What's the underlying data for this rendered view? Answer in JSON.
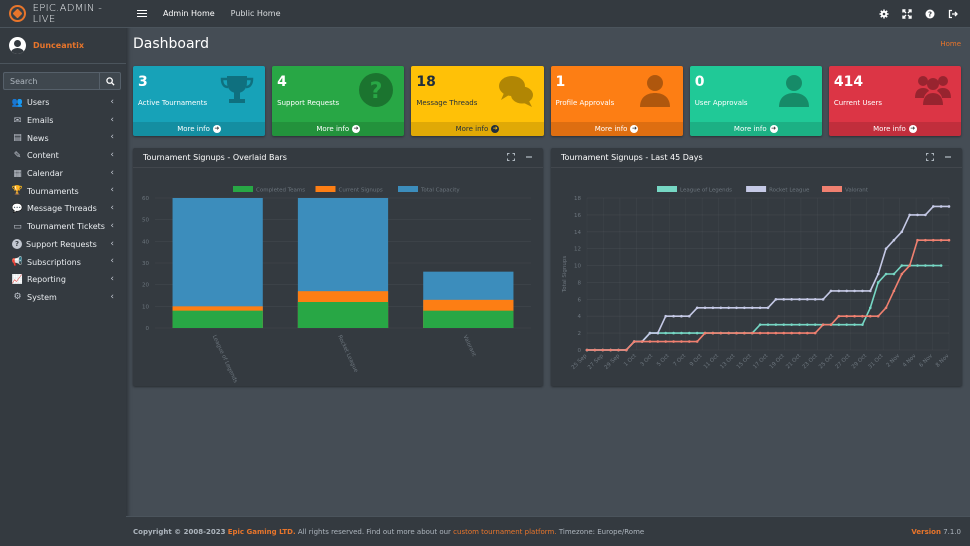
{
  "brand": {
    "name": "EPIC.ADMIN - LIVE"
  },
  "user": {
    "name": "Dunceantix"
  },
  "search": {
    "placeholder": "Search"
  },
  "sidebar": {
    "items": [
      {
        "label": "Users",
        "icon": "users-icon"
      },
      {
        "label": "Emails",
        "icon": "envelope-icon"
      },
      {
        "label": "News",
        "icon": "newspaper-icon"
      },
      {
        "label": "Content",
        "icon": "pencil-icon"
      },
      {
        "label": "Calendar",
        "icon": "calendar-icon"
      },
      {
        "label": "Tournaments",
        "icon": "trophy-icon"
      },
      {
        "label": "Message Threads",
        "icon": "comments-icon"
      },
      {
        "label": "Tournament Tickets",
        "icon": "ticket-icon"
      },
      {
        "label": "Support Requests",
        "icon": "question-icon"
      },
      {
        "label": "Subscriptions",
        "icon": "bullhorn-icon"
      },
      {
        "label": "Reporting",
        "icon": "chart-line-icon"
      },
      {
        "label": "System",
        "icon": "cog-icon"
      }
    ]
  },
  "topbar": {
    "links": [
      "Admin Home",
      "Public Home"
    ],
    "icons": [
      "settings-icon",
      "fullscreen-icon",
      "help-icon",
      "logout-icon"
    ]
  },
  "page": {
    "title": "Dashboard",
    "breadcrumb": "Home"
  },
  "info_boxes": [
    {
      "value": "3",
      "label": "Active Tournaments",
      "footer": "More info",
      "color": "#17a2b8",
      "icon": "trophy-icon"
    },
    {
      "value": "4",
      "label": "Support Requests",
      "footer": "More info",
      "color": "#28a745",
      "icon": "question-circle-icon"
    },
    {
      "value": "18",
      "label": "Message Threads",
      "footer": "More info",
      "color": "#ffc107",
      "icon": "comments-icon"
    },
    {
      "value": "1",
      "label": "Profile Approvals",
      "footer": "More info",
      "color": "#fd7e14",
      "icon": "user-icon"
    },
    {
      "value": "0",
      "label": "User Approvals",
      "footer": "More info",
      "color": "#20c997",
      "icon": "user-icon"
    },
    {
      "value": "414",
      "label": "Current Users",
      "footer": "More info",
      "color": "#dc3545",
      "icon": "users-icon"
    }
  ],
  "charts": {
    "left_title": "Tournament Signups - Overlaid Bars",
    "right_title": "Tournament Signups - Last 45 Days"
  },
  "chart_data": [
    {
      "type": "bar",
      "title": "Tournament Signups - Overlaid Bars",
      "categories": [
        "League of Legends",
        "Rocket League",
        "Valorant"
      ],
      "series": [
        {
          "name": "Completed Teams",
          "values": [
            8,
            12,
            8
          ],
          "color": "#28a745"
        },
        {
          "name": "Current Signups",
          "values": [
            10,
            17,
            13
          ],
          "color": "#fd7e14"
        },
        {
          "name": "Total Capacity",
          "values": [
            60,
            60,
            26
          ],
          "color": "#3c8dbc"
        }
      ],
      "ylim": [
        0,
        60
      ],
      "yticks": [
        0,
        10,
        20,
        30,
        40,
        50,
        60
      ],
      "legend": "top",
      "overlaid": true
    },
    {
      "type": "line",
      "title": "Tournament Signups - Last 45 Days",
      "ylabel": "Total Signups",
      "ylim": [
        0,
        18
      ],
      "yticks": [
        0,
        2,
        4,
        6,
        8,
        10,
        12,
        14,
        16,
        18
      ],
      "xtick_labels": [
        "25 Sep",
        "27 Sep",
        "29 Sep",
        "1 Oct",
        "3 Oct",
        "5 Oct",
        "7 Oct",
        "9 Oct",
        "11 Oct",
        "13 Oct",
        "15 Oct",
        "17 Oct",
        "19 Oct",
        "21 Oct",
        "23 Oct",
        "25 Oct",
        "27 Oct",
        "29 Oct",
        "31 Oct",
        "2 Nov",
        "4 Nov",
        "6 Nov",
        "8 Nov"
      ],
      "legend": "top",
      "series": [
        {
          "name": "League of Legends",
          "color": "#76d7c4",
          "values": [
            0,
            0,
            0,
            0,
            0,
            0,
            1,
            1,
            2,
            2,
            2,
            2,
            2,
            2,
            2,
            2,
            2,
            2,
            2,
            2,
            2,
            2,
            3,
            3,
            3,
            3,
            3,
            3,
            3,
            3,
            3,
            3,
            3,
            3,
            3,
            3,
            5,
            8,
            9,
            9,
            10,
            10,
            10,
            10,
            10,
            10
          ]
        },
        {
          "name": "Rocket League",
          "color": "#c5c9e6",
          "values": [
            0,
            0,
            0,
            0,
            0,
            0,
            1,
            1,
            2,
            2,
            4,
            4,
            4,
            4,
            5,
            5,
            5,
            5,
            5,
            5,
            5,
            5,
            5,
            5,
            6,
            6,
            6,
            6,
            6,
            6,
            6,
            7,
            7,
            7,
            7,
            7,
            7,
            9,
            12,
            13,
            14,
            16,
            16,
            16,
            17,
            17,
            17
          ]
        },
        {
          "name": "Valorant",
          "color": "#f08070",
          "values": [
            0,
            0,
            0,
            0,
            0,
            0,
            1,
            1,
            1,
            1,
            1,
            1,
            1,
            1,
            1,
            2,
            2,
            2,
            2,
            2,
            2,
            2,
            2,
            2,
            2,
            2,
            2,
            2,
            2,
            2,
            3,
            3,
            4,
            4,
            4,
            4,
            4,
            4,
            5,
            7,
            9,
            10,
            13,
            13,
            13,
            13,
            13
          ]
        }
      ]
    }
  ],
  "footer": {
    "copyright_prefix": "Copyright © 2008-2023",
    "company": "Epic Gaming LTD.",
    "mid_text": "All rights reserved. Find out more about our",
    "link": "custom tournament platform.",
    "timezone": "Timezone: Europe/Rome",
    "version_label": "Version",
    "version": "7.1.0"
  }
}
